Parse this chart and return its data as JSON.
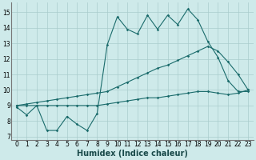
{
  "background_color": "#ceeaea",
  "grid_color": "#aacccc",
  "line_color": "#1a6b6b",
  "xlabel": "Humidex (Indice chaleur)",
  "ylim": [
    6.8,
    15.6
  ],
  "xlim": [
    -0.5,
    23.5
  ],
  "yticks": [
    7,
    8,
    9,
    10,
    11,
    12,
    13,
    14,
    15
  ],
  "xticks": [
    0,
    1,
    2,
    3,
    4,
    5,
    6,
    7,
    8,
    9,
    10,
    11,
    12,
    13,
    14,
    15,
    16,
    17,
    18,
    19,
    20,
    21,
    22,
    23
  ],
  "tick_fontsize": 5.5,
  "xlabel_fontsize": 7.0,
  "x": [
    0,
    1,
    2,
    3,
    4,
    5,
    6,
    7,
    8,
    9,
    10,
    11,
    12,
    13,
    14,
    15,
    16,
    17,
    18,
    19,
    20,
    21,
    22,
    23
  ],
  "y_top": [
    8.9,
    8.4,
    9.0,
    7.4,
    7.4,
    8.3,
    7.8,
    7.4,
    8.5,
    12.9,
    14.7,
    13.9,
    13.6,
    14.8,
    13.9,
    14.8,
    14.2,
    15.2,
    14.5,
    13.1,
    12.1,
    10.6,
    9.9,
    9.9
  ],
  "y_mid": [
    9.0,
    9.1,
    9.2,
    9.3,
    9.4,
    9.5,
    9.6,
    9.7,
    9.8,
    9.9,
    10.2,
    10.5,
    10.8,
    11.1,
    11.4,
    11.6,
    11.9,
    12.2,
    12.5,
    12.8,
    12.5,
    11.8,
    11.0,
    10.0
  ],
  "y_bot": [
    9.0,
    9.0,
    9.0,
    9.0,
    9.0,
    9.0,
    9.0,
    9.0,
    9.0,
    9.1,
    9.2,
    9.3,
    9.4,
    9.5,
    9.5,
    9.6,
    9.7,
    9.8,
    9.9,
    9.9,
    9.8,
    9.7,
    9.8,
    10.0
  ]
}
